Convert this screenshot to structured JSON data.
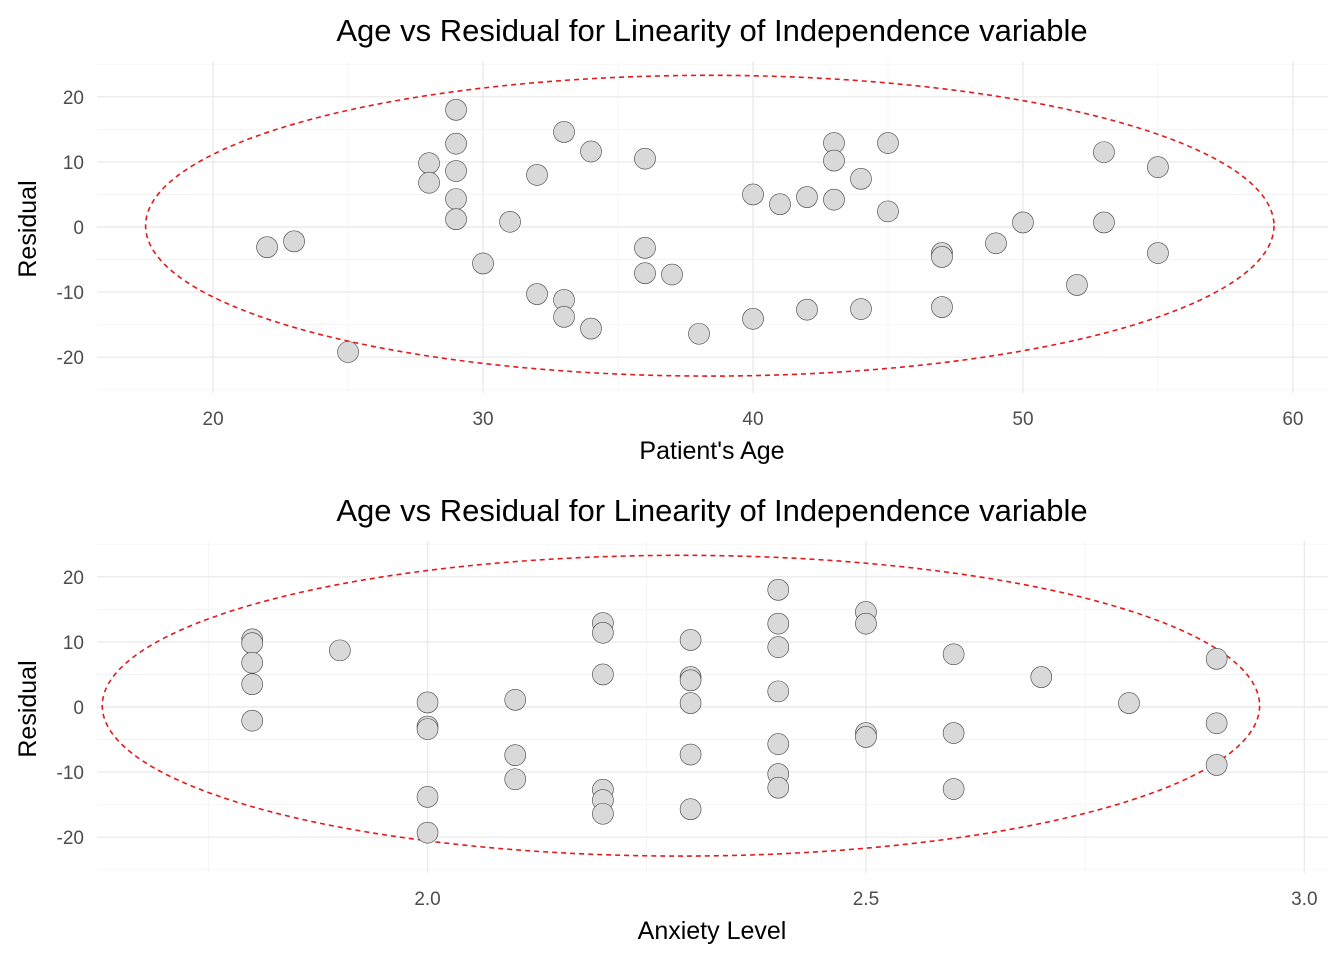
{
  "chart_data": [
    {
      "type": "scatter",
      "title": "Age vs Residual for Linearity of Independence variable",
      "xlabel": "Patient's Age",
      "ylabel": "Residual",
      "xlim": [
        15.7,
        61.3
      ],
      "ylim": [
        -25.5,
        25.5
      ],
      "xticks": [
        20,
        30,
        40,
        50,
        60
      ],
      "xtick_labels": [
        "20",
        "30",
        "40",
        "50",
        "60"
      ],
      "yticks": [
        -20,
        -10,
        0,
        10,
        20
      ],
      "ytick_labels": [
        "-20",
        "-10",
        "0",
        "10",
        "20"
      ],
      "grid": true,
      "point_color": "#d9d9d9",
      "ellipse": {
        "color": "#e31a1c",
        "style": "dashed",
        "center": [
          38.4,
          0.2
        ],
        "x_radius": 20.9,
        "y_radius": 23.1
      },
      "points": [
        {
          "x": 22,
          "y": -3.1
        },
        {
          "x": 23,
          "y": -2.2
        },
        {
          "x": 25,
          "y": -19.2
        },
        {
          "x": 28,
          "y": 9.8
        },
        {
          "x": 28,
          "y": 6.8
        },
        {
          "x": 29,
          "y": 18.0
        },
        {
          "x": 29,
          "y": 12.8
        },
        {
          "x": 29,
          "y": 8.6
        },
        {
          "x": 29,
          "y": 4.3
        },
        {
          "x": 29,
          "y": 1.2
        },
        {
          "x": 30,
          "y": -5.6
        },
        {
          "x": 31,
          "y": 0.8
        },
        {
          "x": 32,
          "y": 8.0
        },
        {
          "x": 32,
          "y": -10.3
        },
        {
          "x": 33,
          "y": 14.6
        },
        {
          "x": 33,
          "y": -11.2
        },
        {
          "x": 33,
          "y": -13.8
        },
        {
          "x": 34,
          "y": 11.6
        },
        {
          "x": 34,
          "y": -15.6
        },
        {
          "x": 36,
          "y": 10.5
        },
        {
          "x": 36,
          "y": -3.2
        },
        {
          "x": 36,
          "y": -7.1
        },
        {
          "x": 37,
          "y": -7.3
        },
        {
          "x": 38,
          "y": -16.4
        },
        {
          "x": 40,
          "y": 5.0
        },
        {
          "x": 40,
          "y": -14.1
        },
        {
          "x": 41,
          "y": 3.5
        },
        {
          "x": 42,
          "y": 4.6
        },
        {
          "x": 42,
          "y": -12.7
        },
        {
          "x": 43,
          "y": 12.9
        },
        {
          "x": 43,
          "y": 10.2
        },
        {
          "x": 43,
          "y": 4.2
        },
        {
          "x": 44,
          "y": 7.4
        },
        {
          "x": 44,
          "y": -12.6
        },
        {
          "x": 45,
          "y": 12.9
        },
        {
          "x": 45,
          "y": 2.4
        },
        {
          "x": 47,
          "y": -4.0
        },
        {
          "x": 47,
          "y": -4.6
        },
        {
          "x": 47,
          "y": -12.3
        },
        {
          "x": 49,
          "y": -2.5
        },
        {
          "x": 50,
          "y": 0.7
        },
        {
          "x": 52,
          "y": -8.9
        },
        {
          "x": 53,
          "y": 11.5
        },
        {
          "x": 53,
          "y": 0.7
        },
        {
          "x": 55,
          "y": 9.2
        },
        {
          "x": 55,
          "y": -4.0
        }
      ]
    },
    {
      "type": "scatter",
      "title": "Age vs Residual for Linearity of Independence variable",
      "xlabel": "Anxiety Level",
      "ylabel": "Residual",
      "xlim": [
        1.623,
        3.027
      ],
      "ylim": [
        -25.5,
        25.5
      ],
      "xticks": [
        2.0,
        2.5,
        3.0
      ],
      "xtick_labels": [
        "2.0",
        "2.5",
        "3.0"
      ],
      "yticks": [
        -20,
        -10,
        0,
        10,
        20
      ],
      "ytick_labels": [
        "-20",
        "-10",
        "0",
        "10",
        "20"
      ],
      "grid": true,
      "point_color": "#d9d9d9",
      "ellipse": {
        "color": "#e31a1c",
        "style": "dashed",
        "center": [
          2.289,
          0.2
        ],
        "x_radius": 0.66,
        "y_radius": 23.1
      },
      "points": [
        {
          "x": 1.8,
          "y": 10.4
        },
        {
          "x": 1.8,
          "y": 9.8
        },
        {
          "x": 1.8,
          "y": 6.8
        },
        {
          "x": 1.8,
          "y": 3.5
        },
        {
          "x": 1.8,
          "y": -2.1
        },
        {
          "x": 1.9,
          "y": 8.7
        },
        {
          "x": 2.0,
          "y": 0.7
        },
        {
          "x": 2.0,
          "y": -3.0
        },
        {
          "x": 2.0,
          "y": -3.4
        },
        {
          "x": 2.0,
          "y": -13.8
        },
        {
          "x": 2.0,
          "y": -19.3
        },
        {
          "x": 2.1,
          "y": 1.1
        },
        {
          "x": 2.1,
          "y": -7.4
        },
        {
          "x": 2.1,
          "y": -11.1
        },
        {
          "x": 2.2,
          "y": 12.9
        },
        {
          "x": 2.2,
          "y": 11.4
        },
        {
          "x": 2.2,
          "y": 5.0
        },
        {
          "x": 2.2,
          "y": -12.7
        },
        {
          "x": 2.2,
          "y": -14.3
        },
        {
          "x": 2.2,
          "y": -16.4
        },
        {
          "x": 2.3,
          "y": 10.3
        },
        {
          "x": 2.3,
          "y": 4.6
        },
        {
          "x": 2.3,
          "y": 4.1
        },
        {
          "x": 2.3,
          "y": 0.6
        },
        {
          "x": 2.3,
          "y": -7.3
        },
        {
          "x": 2.3,
          "y": -15.7
        },
        {
          "x": 2.4,
          "y": 18.0
        },
        {
          "x": 2.4,
          "y": 12.8
        },
        {
          "x": 2.4,
          "y": 9.2
        },
        {
          "x": 2.4,
          "y": 2.4
        },
        {
          "x": 2.4,
          "y": -5.7
        },
        {
          "x": 2.4,
          "y": -10.3
        },
        {
          "x": 2.4,
          "y": -12.4
        },
        {
          "x": 2.5,
          "y": 14.6
        },
        {
          "x": 2.5,
          "y": 12.8
        },
        {
          "x": 2.5,
          "y": -4.0
        },
        {
          "x": 2.5,
          "y": -4.6
        },
        {
          "x": 2.6,
          "y": 8.1
        },
        {
          "x": 2.6,
          "y": -4.0
        },
        {
          "x": 2.6,
          "y": -12.6
        },
        {
          "x": 2.7,
          "y": 4.6
        },
        {
          "x": 2.8,
          "y": 0.6
        },
        {
          "x": 2.9,
          "y": 7.4
        },
        {
          "x": 2.9,
          "y": -2.5
        },
        {
          "x": 2.9,
          "y": -8.9
        }
      ]
    }
  ]
}
